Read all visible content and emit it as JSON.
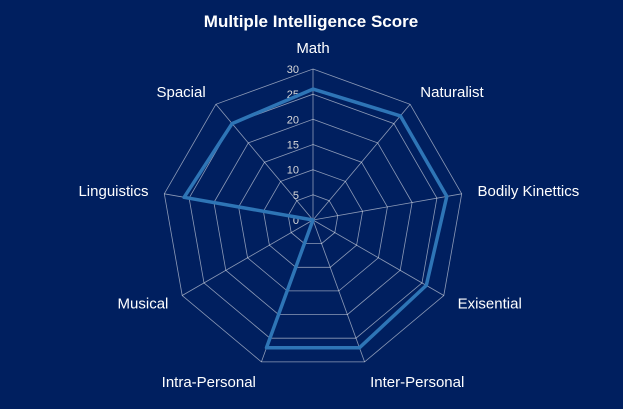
{
  "colors": {
    "background": "#001f5f",
    "grid": "#ffffff",
    "series": "#2e75b6",
    "text": "#ffffff",
    "tick_text": "#d9d9d9"
  },
  "chart_data": {
    "type": "radar",
    "title": "Multiple Intelligence Score",
    "categories": [
      "Math",
      "Naturalist",
      "Bodily Kinettics",
      "Exisential",
      "Inter-Personal",
      "Intra-Personal",
      "Musical",
      "Linguistics",
      "Spacial"
    ],
    "series": [
      {
        "values": [
          26,
          27,
          27,
          26,
          27,
          27,
          0,
          26,
          25
        ]
      }
    ],
    "rlim": [
      0,
      30
    ],
    "ticks": [
      0,
      5,
      10,
      15,
      20,
      25,
      30
    ],
    "grid": true,
    "legend": "none"
  }
}
